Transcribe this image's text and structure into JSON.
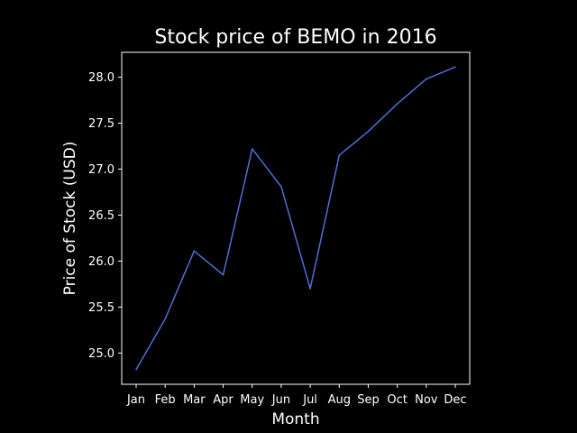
{
  "chart_data": {
    "type": "line",
    "title": "Stock price of BEMO in 2016",
    "xlabel": "Month",
    "ylabel": "Price of Stock (USD)",
    "categories": [
      "Jan",
      "Feb",
      "Mar",
      "Apr",
      "May",
      "Jun",
      "Jul",
      "Aug",
      "Sep",
      "Oct",
      "Nov",
      "Dec"
    ],
    "series": [
      {
        "values": [
          24.82,
          25.37,
          26.11,
          25.85,
          27.22,
          26.81,
          25.7,
          27.15,
          27.41,
          27.71,
          27.98,
          28.11
        ]
      }
    ],
    "ylim": [
      24.66,
      28.27
    ],
    "yticks": [
      25.0,
      25.5,
      26.0,
      26.5,
      27.0,
      27.5,
      28.0
    ],
    "ytick_labels": [
      "25.0",
      "25.5",
      "26.0",
      "26.5",
      "27.0",
      "27.5",
      "28.0"
    ],
    "grid": false,
    "line_color": "#4f6fd8",
    "axis_color": "#ffffff",
    "background": "#000000"
  }
}
